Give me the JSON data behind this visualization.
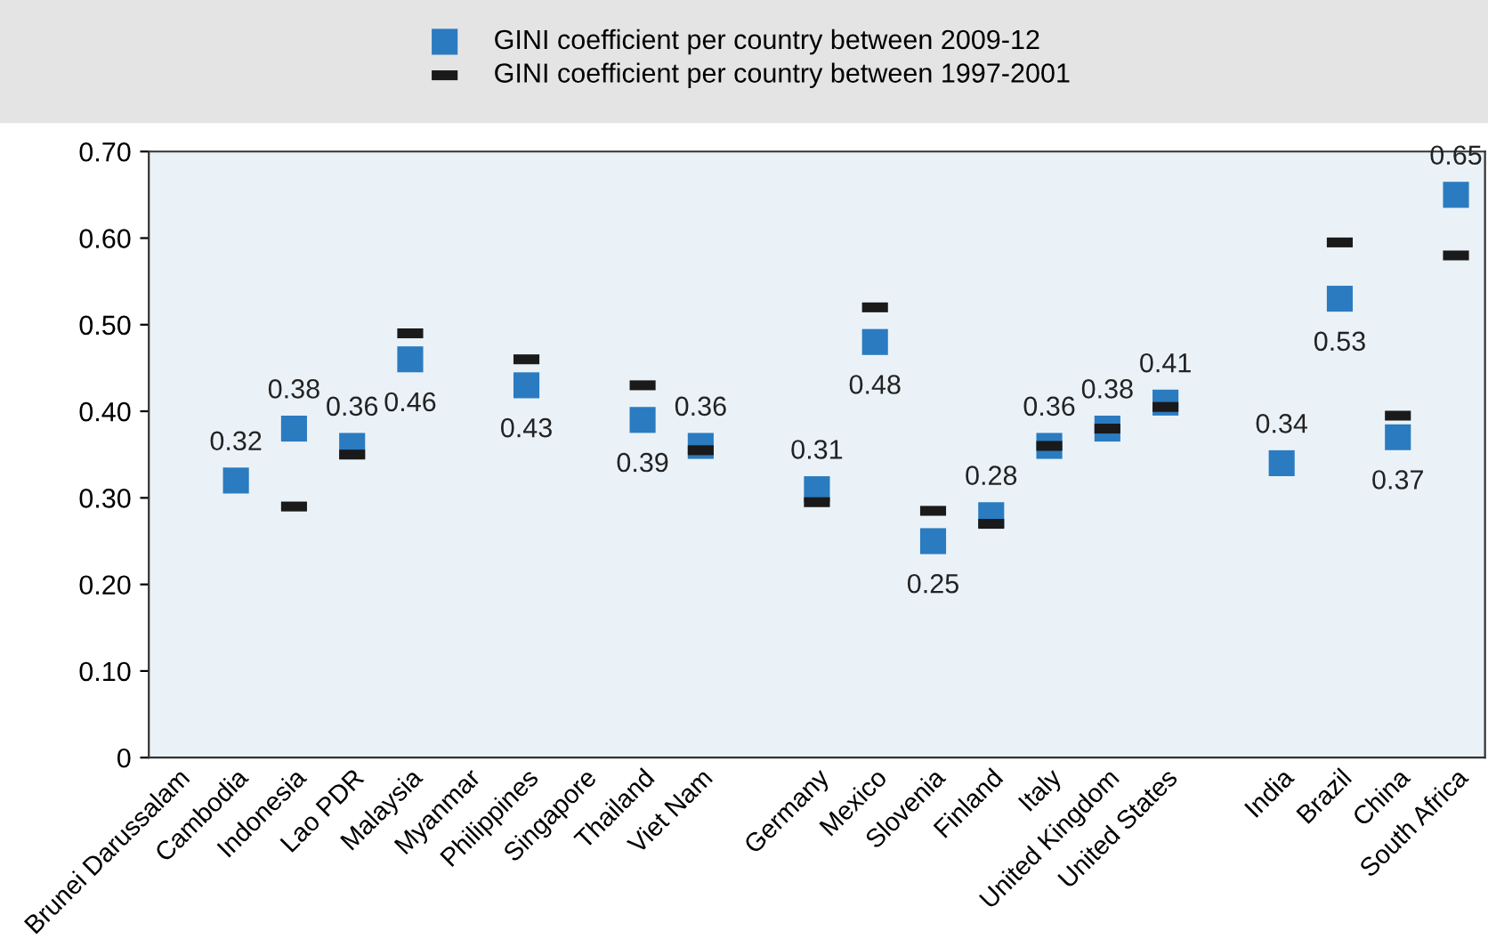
{
  "chart_data": {
    "type": "scatter",
    "categories": [
      "Brunei Darussalam",
      "Cambodia",
      "Indonesia",
      "Lao PDR",
      "Malaysia",
      "Myanmar",
      "Philippines",
      "Singapore",
      "Thailand",
      "Viet Nam",
      null,
      "Germany",
      "Mexico",
      "Slovenia",
      "Finland",
      "Italy",
      "United Kingdom",
      "United States",
      null,
      "India",
      "Brazil",
      "China",
      "South Africa"
    ],
    "series": [
      {
        "name": "GINI coefficient per country between 2009-12",
        "color": "#2b7bc0",
        "marker": "square",
        "values": [
          null,
          0.32,
          0.38,
          0.36,
          0.46,
          null,
          0.43,
          null,
          0.39,
          0.36,
          null,
          0.31,
          0.48,
          0.25,
          0.28,
          0.36,
          0.38,
          0.41,
          null,
          0.34,
          0.53,
          0.37,
          0.65
        ],
        "value_labels": [
          null,
          "0.32",
          "0.38",
          "0.36",
          "0.46",
          null,
          "0.43",
          null,
          "0.39",
          "0.36",
          null,
          "0.31",
          "0.48",
          "0.25",
          "0.28",
          "0.36",
          "0.38",
          "0.41",
          null,
          "0.34",
          "0.53",
          "0.37",
          "0.65"
        ]
      },
      {
        "name": "GINI coefficient per country between 1997-2001",
        "color": "#1a1a1a",
        "values": [
          null,
          null,
          0.29,
          0.35,
          0.49,
          null,
          0.46,
          null,
          0.43,
          0.355,
          null,
          0.295,
          0.52,
          0.285,
          0.27,
          0.36,
          0.38,
          0.405,
          null,
          null,
          0.595,
          0.395,
          0.58
        ]
      }
    ],
    "ylim": [
      0,
      0.7
    ],
    "yticks": [
      0,
      {
        "value": 0.1,
        "label": "0.10"
      },
      {
        "value": 0.2,
        "label": "0.20"
      },
      {
        "value": 0.3,
        "label": "0.30"
      },
      {
        "value": 0.4,
        "label": "0.40"
      },
      {
        "value": 0.5,
        "label": "0.50"
      },
      {
        "value": 0.6,
        "label": "0.60"
      },
      {
        "value": 0.7,
        "label": "0.70"
      }
    ],
    "grid": false,
    "legend": "top"
  }
}
